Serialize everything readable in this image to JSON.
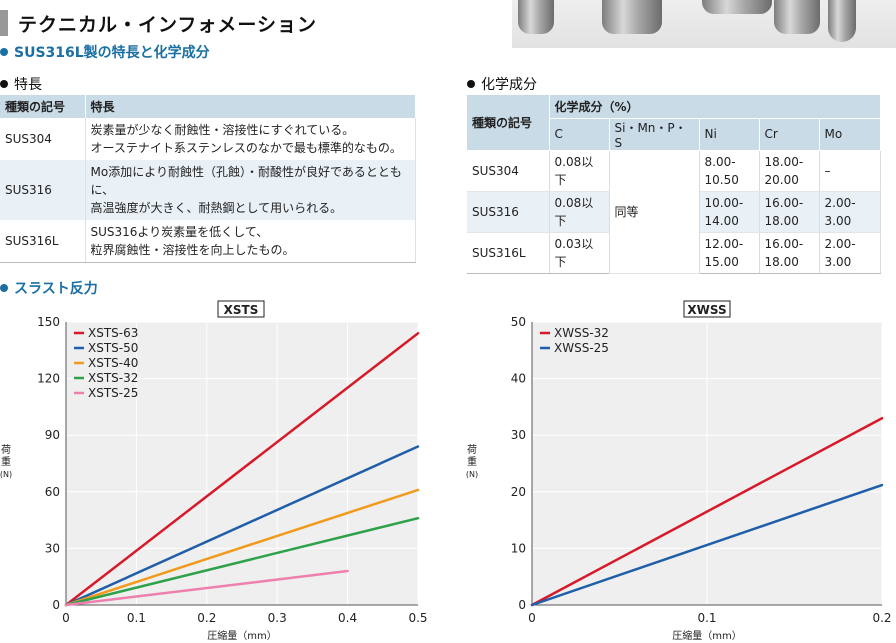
{
  "page_title": "テクニカル・インフォメーション",
  "section_sus": "SUS316L製の特長と化学成分",
  "features_heading": "特長",
  "chem_heading": "化学成分",
  "features_table": {
    "headers": [
      "種類の記号",
      "特長"
    ],
    "rows": [
      {
        "code": "SUS304",
        "line1": "炭素量が少なく耐蝕性・溶接性にすぐれている。",
        "line2": "オーステナイト系ステンレスのなかで最も標準的なもの。"
      },
      {
        "code": "SUS316",
        "line1": "Mo添加により耐蝕性（孔蝕）・耐酸性が良好であるとともに、",
        "line2": "高温強度が大きく、耐熱鋼として用いられる。"
      },
      {
        "code": "SUS316L",
        "line1": "SUS316より炭素量を低くして、",
        "line2": "粒界腐蝕性・溶接性を向上したもの。"
      }
    ]
  },
  "chem_table": {
    "header_code": "種類の記号",
    "header_group": "化学成分（%）",
    "columns": [
      "C",
      "Si・Mn・P・S",
      "Ni",
      "Cr",
      "Mo"
    ],
    "same_label": "同等",
    "rows": [
      {
        "code": "SUS304",
        "c": "0.08以下",
        "ni": [
          "8.00-",
          "10.50"
        ],
        "cr": [
          "18.00-",
          "20.00"
        ],
        "mo": [
          "–",
          ""
        ]
      },
      {
        "code": "SUS316",
        "c": "0.08以下",
        "ni": [
          "10.00-",
          "14.00"
        ],
        "cr": [
          "16.00-",
          "18.00"
        ],
        "mo": [
          "2.00-",
          "3.00"
        ]
      },
      {
        "code": "SUS316L",
        "c": "0.03以下",
        "ni": [
          "12.00-",
          "15.00"
        ],
        "cr": [
          "16.00-",
          "18.00"
        ],
        "mo": [
          "2.00-",
          "3.00"
        ]
      }
    ]
  },
  "section_thrust": "スラスト反力",
  "chart_data": [
    {
      "type": "line",
      "title": "XSTS",
      "xlabel": "圧縮量（mm）",
      "ylabel": "荷重（N）",
      "xlim": [
        0,
        0.5
      ],
      "ylim": [
        0,
        150
      ],
      "xticks": [
        0,
        0.1,
        0.2,
        0.3,
        0.4,
        0.5
      ],
      "yticks": [
        0,
        30,
        60,
        90,
        120,
        150
      ],
      "grid": true,
      "legend": "top-left",
      "series": [
        {
          "name": "XSTS-63",
          "color": "#d7192a",
          "x": [
            0,
            0.5
          ],
          "y": [
            0,
            144
          ]
        },
        {
          "name": "XSTS-50",
          "color": "#1f5ea8",
          "x": [
            0,
            0.5
          ],
          "y": [
            0,
            84
          ]
        },
        {
          "name": "XSTS-40",
          "color": "#f29a1b",
          "x": [
            0,
            0.5
          ],
          "y": [
            0,
            61
          ]
        },
        {
          "name": "XSTS-32",
          "color": "#2ea14a",
          "x": [
            0,
            0.5
          ],
          "y": [
            0,
            46
          ]
        },
        {
          "name": "XSTS-25",
          "color": "#ee7fae",
          "x": [
            0,
            0.4
          ],
          "y": [
            0,
            18
          ]
        }
      ]
    },
    {
      "type": "line",
      "title": "XWSS",
      "xlabel": "圧縮量（mm）",
      "ylabel": "荷重（N）",
      "xlim": [
        0,
        0.2
      ],
      "ylim": [
        0,
        50
      ],
      "xticks": [
        0,
        0.1,
        0.2
      ],
      "yticks": [
        0,
        10,
        20,
        30,
        40,
        50
      ],
      "grid": true,
      "legend": "top-left",
      "series": [
        {
          "name": "XWSS-32",
          "color": "#d7192a",
          "x": [
            0,
            0.2
          ],
          "y": [
            0,
            33
          ]
        },
        {
          "name": "XWSS-25",
          "color": "#1f5ea8",
          "x": [
            0,
            0.2
          ],
          "y": [
            0,
            21.2
          ]
        }
      ]
    }
  ]
}
